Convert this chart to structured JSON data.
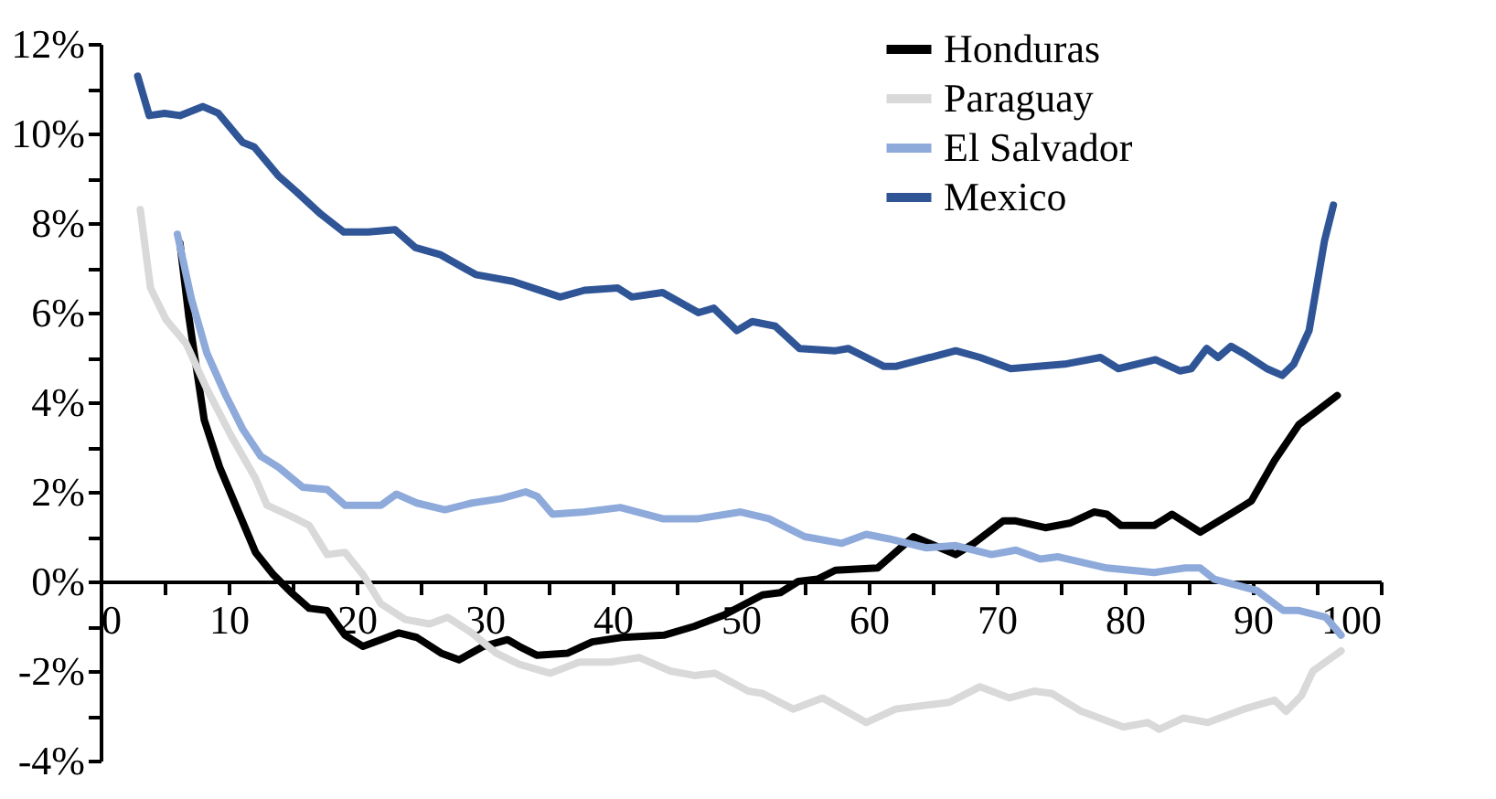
{
  "chart_data": {
    "type": "line",
    "legend": "top right",
    "grid": false,
    "line_style": "solid",
    "marker": "none",
    "xlim": [
      0,
      100
    ],
    "ylim": [
      -4,
      12
    ],
    "xticks": [
      0,
      {
        "value": 5,
        "label": null
      },
      10,
      {
        "value": 15,
        "label": null
      },
      20,
      {
        "value": 25,
        "label": null
      },
      30,
      {
        "value": 35,
        "label": null
      },
      40,
      {
        "value": 45,
        "label": null
      },
      50,
      {
        "value": 55,
        "label": null
      },
      60,
      {
        "value": 65,
        "label": null
      },
      70,
      {
        "value": 75,
        "label": null
      },
      80,
      {
        "value": 85,
        "label": null
      },
      90,
      {
        "value": 95,
        "label": null
      },
      100
    ],
    "yticks": [
      {
        "value": -4,
        "label": "-4%"
      },
      {
        "value": -3,
        "label": null
      },
      {
        "value": -2,
        "label": "-2%"
      },
      {
        "value": -1,
        "label": null
      },
      {
        "value": 0,
        "label": "0%"
      },
      {
        "value": 1,
        "label": null
      },
      {
        "value": 2,
        "label": "2%"
      },
      {
        "value": 3,
        "label": null
      },
      {
        "value": 4,
        "label": "4%"
      },
      {
        "value": 5,
        "label": null
      },
      {
        "value": 6,
        "label": "6%"
      },
      {
        "value": 7,
        "label": null
      },
      {
        "value": 8,
        "label": "8%"
      },
      {
        "value": 9,
        "label": null
      },
      {
        "value": 10,
        "label": "10%"
      },
      {
        "value": 11,
        "label": null
      },
      {
        "value": 12,
        "label": "12%"
      }
    ],
    "series": [
      {
        "name": "Honduras",
        "color": "#000000",
        "x": [
          6.2,
          6.9,
          7.6,
          8.1,
          9.3,
          10.7,
          12.1,
          13.5,
          14.9,
          16.3,
          17.7,
          19.1,
          20.5,
          21.9,
          23.3,
          24.7,
          26.6,
          28,
          29.9,
          31.8,
          32.7,
          34.1,
          36.5,
          38.4,
          40.7,
          44,
          46.4,
          48.7,
          51.7,
          53.1,
          54.5,
          56,
          57.4,
          60.7,
          63.5,
          66.8,
          68.2,
          70.5,
          71.5,
          73.8,
          75.7,
          77.6,
          78.6,
          79.7,
          82.3,
          83.7,
          85.9,
          88.5,
          89.9,
          91.7,
          93.6,
          95,
          96.6
        ],
        "values": [
          7.55,
          5.9,
          4.55,
          3.6,
          2.55,
          1.6,
          0.65,
          0.15,
          -0.25,
          -0.6,
          -0.65,
          -1.2,
          -1.45,
          -1.3,
          -1.15,
          -1.25,
          -1.6,
          -1.75,
          -1.45,
          -1.3,
          -1.45,
          -1.65,
          -1.6,
          -1.35,
          -1.25,
          -1.2,
          -1.0,
          -0.75,
          -0.3,
          -0.25,
          0.0,
          0.05,
          0.25,
          0.3,
          1.0,
          0.6,
          0.85,
          1.35,
          1.35,
          1.2,
          1.3,
          1.55,
          1.5,
          1.25,
          1.25,
          1.5,
          1.1,
          1.55,
          1.8,
          2.7,
          3.5,
          3.8,
          4.15
        ]
      },
      {
        "name": "Paraguay",
        "color": "#d9d9d9",
        "x": [
          3.1,
          3.9,
          5.1,
          6.7,
          8.3,
          10.2,
          12.1,
          13,
          14.9,
          16.3,
          17.7,
          19.1,
          20.5,
          21.9,
          23.8,
          25.7,
          27.1,
          29,
          30.9,
          32.7,
          35.1,
          37.4,
          39.8,
          42.1,
          44.5,
          46.4,
          48,
          50.6,
          51.7,
          54.1,
          56.4,
          59.8,
          62.1,
          64.9,
          66.3,
          68.7,
          71,
          72.9,
          74.3,
          76.6,
          79.9,
          81.8,
          82.7,
          84.6,
          86.5,
          89.3,
          91.7,
          92.6,
          93.8,
          94.7,
          96.9
        ],
        "values": [
          8.3,
          6.55,
          5.85,
          5.3,
          4.3,
          3.25,
          2.3,
          1.7,
          1.45,
          1.25,
          0.6,
          0.65,
          0.15,
          -0.5,
          -0.85,
          -0.95,
          -0.8,
          -1.15,
          -1.6,
          -1.85,
          -2.05,
          -1.8,
          -1.8,
          -1.7,
          -2.0,
          -2.1,
          -2.05,
          -2.45,
          -2.5,
          -2.85,
          -2.6,
          -3.15,
          -2.85,
          -2.75,
          -2.7,
          -2.35,
          -2.6,
          -2.45,
          -2.5,
          -2.9,
          -3.25,
          -3.15,
          -3.3,
          -3.05,
          -3.15,
          -2.85,
          -2.65,
          -2.9,
          -2.55,
          -2.0,
          -1.55
        ]
      },
      {
        "name": "El Salvador",
        "color": "#8eaadb",
        "x": [
          6.0,
          7.1,
          8.3,
          9.7,
          11.1,
          12.5,
          13.9,
          15.8,
          17.7,
          19.1,
          21.9,
          23.1,
          24.7,
          26.9,
          29,
          31.3,
          33.2,
          34.1,
          35.3,
          37.8,
          40.6,
          43.9,
          46.7,
          50,
          52.2,
          55,
          57.9,
          59.8,
          61.6,
          64.5,
          66.8,
          69.6,
          71.5,
          73.4,
          74.8,
          78.6,
          82.3,
          84.7,
          85.9,
          87,
          90.3,
          92.4,
          93.6,
          95.7,
          96.9
        ],
        "values": [
          7.75,
          6.3,
          5.1,
          4.2,
          3.4,
          2.8,
          2.55,
          2.1,
          2.05,
          1.7,
          1.7,
          1.95,
          1.75,
          1.6,
          1.75,
          1.85,
          2.0,
          1.9,
          1.5,
          1.55,
          1.65,
          1.4,
          1.4,
          1.55,
          1.4,
          1.0,
          0.85,
          1.05,
          0.95,
          0.75,
          0.8,
          0.6,
          0.7,
          0.5,
          0.55,
          0.3,
          0.2,
          0.3,
          0.3,
          0.05,
          -0.2,
          -0.65,
          -0.65,
          -0.8,
          -1.2
        ]
      },
      {
        "name": "Mexico",
        "color": "#2f5597",
        "x": [
          2.9,
          3.8,
          5.0,
          6.2,
          8.0,
          9.2,
          11.1,
          12,
          13.9,
          15.3,
          17.2,
          19.0,
          20.9,
          23,
          24.6,
          26.5,
          29.3,
          32.2,
          35.9,
          37.8,
          40.4,
          41.5,
          43.9,
          46.7,
          47.9,
          49.7,
          50.9,
          52.7,
          54.6,
          57.4,
          58.4,
          61.2,
          62.1,
          66.8,
          68.7,
          71.1,
          75.3,
          78.1,
          79.5,
          82.4,
          84.3,
          85.2,
          86.4,
          87.3,
          88.3,
          89.5,
          91.1,
          92.3,
          93.2,
          94.4,
          95.6,
          96.3
        ],
        "values": [
          11.28,
          10.4,
          10.45,
          10.4,
          10.6,
          10.45,
          9.8,
          9.7,
          9.05,
          8.7,
          8.2,
          7.8,
          7.8,
          7.85,
          7.45,
          7.3,
          6.85,
          6.7,
          6.35,
          6.5,
          6.55,
          6.35,
          6.45,
          6.0,
          6.1,
          5.6,
          5.8,
          5.7,
          5.2,
          5.15,
          5.2,
          4.8,
          4.8,
          5.15,
          5.0,
          4.75,
          4.85,
          5.0,
          4.75,
          4.95,
          4.7,
          4.75,
          5.2,
          5.0,
          5.25,
          5.05,
          4.75,
          4.6,
          4.85,
          5.6,
          7.6,
          8.4
        ]
      }
    ]
  }
}
